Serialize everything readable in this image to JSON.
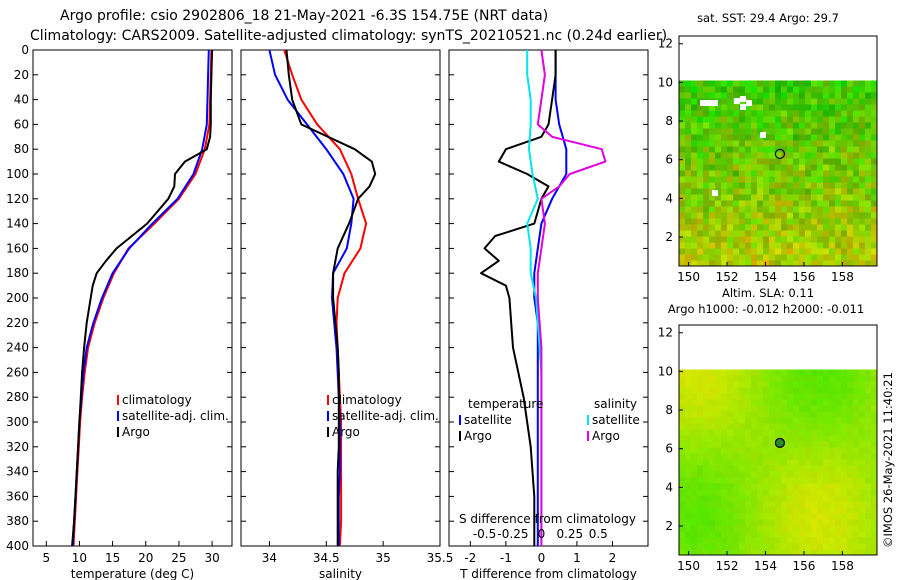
{
  "title": {
    "line1": "Argo profile: csio 2902806_18 21-May-2021 -6.3S 154.75E (NRT data)",
    "line2": "Climatology: CARS2009. Satellite-adjusted climatology: synTS_20210521.nc (0.24d earlier)"
  },
  "colors": {
    "climatology": "#ff0000",
    "satellite": "#0000ff",
    "argo": "#000000",
    "sat_salinity": "#00e5ee",
    "argo_salinity": "#e000e0"
  },
  "chart_data": [
    {
      "type": "line",
      "name": "temperature-profile",
      "xlabel": "temperature (deg C)",
      "ylabel": "depth",
      "xlim": [
        3,
        33
      ],
      "ylim": [
        400,
        0
      ],
      "xticks": [
        "5",
        "10",
        "15",
        "20",
        "25",
        "30"
      ],
      "xtick_values": [
        5,
        10,
        15,
        20,
        25,
        30
      ],
      "yticks": [
        "0",
        "20",
        "40",
        "60",
        "80",
        "100",
        "120",
        "140",
        "160",
        "180",
        "200",
        "220",
        "240",
        "260",
        "280",
        "300",
        "320",
        "340",
        "360",
        "380",
        "400"
      ],
      "legend": [
        "climatology",
        "satellite-adj. clim.",
        "Argo"
      ],
      "series": [
        {
          "name": "climatology",
          "color": "#ff0000",
          "depth": [
            0,
            20,
            40,
            60,
            80,
            100,
            120,
            140,
            160,
            180,
            200,
            220,
            240,
            260,
            280,
            300,
            320,
            340,
            360,
            380,
            400
          ],
          "values": [
            29.9,
            29.8,
            29.7,
            29.6,
            28.9,
            27.5,
            25.0,
            21.3,
            17.4,
            15.2,
            13.6,
            12.3,
            11.3,
            10.8,
            10.4,
            10.1,
            9.9,
            9.7,
            9.5,
            9.3,
            9.1
          ]
        },
        {
          "name": "satellite-adj. clim.",
          "color": "#0000ff",
          "depth": [
            0,
            20,
            40,
            60,
            80,
            100,
            120,
            140,
            160,
            180,
            200,
            220,
            240,
            260,
            280,
            300,
            320,
            340,
            360,
            380,
            400
          ],
          "values": [
            29.5,
            29.4,
            29.3,
            29.2,
            28.5,
            27.2,
            24.8,
            21.0,
            17.5,
            15.0,
            13.4,
            12.1,
            11.1,
            10.6,
            10.3,
            10.0,
            9.8,
            9.6,
            9.4,
            9.2,
            9.0
          ]
        },
        {
          "name": "Argo",
          "color": "#000000",
          "depth": [
            0,
            20,
            40,
            60,
            70,
            80,
            90,
            100,
            110,
            120,
            140,
            160,
            170,
            180,
            190,
            200,
            220,
            240,
            260,
            280,
            300,
            320,
            340,
            360,
            380,
            400
          ],
          "values": [
            30.0,
            29.9,
            29.8,
            29.8,
            29.7,
            29.2,
            25.9,
            24.4,
            24.3,
            23.4,
            20.2,
            15.6,
            14.0,
            12.6,
            12.0,
            11.7,
            11.1,
            10.7,
            10.4,
            10.2,
            10.0,
            9.8,
            9.6,
            9.4,
            9.2,
            8.9
          ]
        }
      ]
    },
    {
      "type": "line",
      "name": "salinity-profile",
      "xlabel": "salinity",
      "ylabel": "depth",
      "xlim": [
        33.75,
        35.5
      ],
      "ylim": [
        400,
        0
      ],
      "xticks": [
        "34",
        "34.5",
        "35",
        "35.5"
      ],
      "xtick_values": [
        34,
        34.5,
        35,
        35.5
      ],
      "legend": [
        "climatology",
        "satellite-adj. clim.",
        "Argo"
      ],
      "series": [
        {
          "name": "climatology",
          "color": "#ff0000",
          "depth": [
            0,
            20,
            40,
            60,
            80,
            100,
            120,
            140,
            160,
            180,
            200,
            220,
            240,
            260,
            280,
            300,
            320,
            340,
            360,
            380,
            400
          ],
          "values": [
            34.13,
            34.2,
            34.28,
            34.42,
            34.62,
            34.72,
            34.78,
            34.85,
            34.8,
            34.66,
            34.6,
            34.59,
            34.6,
            34.61,
            34.62,
            34.63,
            34.63,
            34.63,
            34.63,
            34.63,
            34.62
          ]
        },
        {
          "name": "satellite-adj. clim.",
          "color": "#0000ff",
          "depth": [
            0,
            20,
            40,
            60,
            80,
            100,
            120,
            140,
            160,
            180,
            200,
            220,
            240,
            260,
            280,
            300,
            320,
            340,
            360,
            380,
            400
          ],
          "values": [
            34.0,
            34.05,
            34.16,
            34.33,
            34.5,
            34.65,
            34.74,
            34.72,
            34.68,
            34.56,
            34.55,
            34.57,
            34.59,
            34.6,
            34.61,
            34.62,
            34.62,
            34.62,
            34.61,
            34.61,
            34.61
          ]
        },
        {
          "name": "Argo",
          "color": "#000000",
          "depth": [
            0,
            20,
            40,
            60,
            80,
            90,
            100,
            110,
            120,
            140,
            160,
            180,
            200,
            220,
            240,
            260,
            280,
            300,
            320,
            340,
            360,
            380,
            400
          ],
          "values": [
            34.15,
            34.17,
            34.2,
            34.28,
            34.75,
            34.9,
            34.93,
            34.88,
            34.78,
            34.7,
            34.6,
            34.56,
            34.56,
            34.58,
            34.6,
            34.61,
            34.61,
            34.61,
            34.61,
            34.6,
            34.6,
            34.6,
            34.6
          ]
        }
      ]
    },
    {
      "type": "line",
      "name": "difference-profile",
      "xlabel": "T difference from climatology",
      "xlabel_top": "S difference from climatology",
      "ylabel": "depth",
      "xlim": [
        -2.6,
        3.0
      ],
      "ylim": [
        400,
        0
      ],
      "xticks": [
        "-2",
        "-1",
        "0",
        "1",
        "2"
      ],
      "xtick_values": [
        -2,
        -1,
        0,
        1,
        2
      ],
      "top_ticks": [
        "-0.5",
        "-0.25",
        "0",
        "0.25",
        "0.5"
      ],
      "top_tick_values": [
        -1.6,
        -0.8,
        0,
        0.8,
        1.6
      ],
      "legend_temperature_title": "temperature",
      "legend_salinity_title": "salinity",
      "legend": [
        "satellite",
        "Argo",
        "satellite",
        "Argo"
      ],
      "series": [
        {
          "name": "T satellite",
          "color": "#0000ff",
          "depth": [
            0,
            20,
            40,
            60,
            80,
            100,
            120,
            140,
            160,
            180,
            200,
            220,
            240,
            260,
            280,
            300,
            320,
            340,
            360,
            380,
            400
          ],
          "values": [
            0.4,
            0.4,
            0.4,
            0.5,
            0.7,
            0.7,
            0.3,
            0.0,
            -0.1,
            -0.2,
            -0.2,
            -0.1,
            -0.1,
            -0.1,
            -0.1,
            -0.1,
            -0.1,
            -0.1,
            -0.1,
            -0.1,
            -0.1
          ]
        },
        {
          "name": "T Argo",
          "color": "#000000",
          "depth": [
            0,
            20,
            40,
            60,
            70,
            80,
            90,
            100,
            110,
            120,
            140,
            150,
            160,
            170,
            180,
            190,
            200,
            240,
            280,
            320,
            360,
            400
          ],
          "values": [
            0.4,
            0.4,
            0.3,
            0.2,
            0.0,
            -1.0,
            -1.2,
            -0.4,
            0.2,
            0.0,
            -0.2,
            -1.3,
            -1.6,
            -1.2,
            -1.7,
            -1.0,
            -0.9,
            -0.8,
            -0.5,
            -0.3,
            -0.2,
            -0.2
          ]
        },
        {
          "name": "S satellite",
          "color": "#00e5ee",
          "depth": [
            0,
            20,
            40,
            60,
            80,
            100,
            120,
            140,
            160,
            180,
            200,
            220,
            240,
            260,
            280,
            300,
            320,
            340,
            360,
            380,
            400
          ],
          "values": [
            -0.4,
            -0.4,
            -0.3,
            -0.3,
            -0.35,
            -0.25,
            -0.1,
            -0.4,
            -0.3,
            -0.3,
            -0.15,
            -0.1,
            -0.05,
            0.0,
            0.0,
            0.0,
            0.0,
            0.0,
            0.0,
            0.0,
            0.0
          ]
        },
        {
          "name": "S Argo",
          "color": "#e000e0",
          "depth": [
            0,
            20,
            40,
            60,
            70,
            80,
            90,
            100,
            110,
            120,
            140,
            160,
            180,
            200,
            240,
            280,
            320,
            360,
            400
          ],
          "values": [
            0.0,
            0.1,
            0.0,
            -0.1,
            0.3,
            1.7,
            1.8,
            0.8,
            0.5,
            0.0,
            0.1,
            0.0,
            -0.1,
            -0.1,
            0.0,
            0.0,
            0.0,
            0.0,
            0.0
          ]
        }
      ]
    },
    {
      "type": "heatmap",
      "name": "sst-map",
      "title": "sat. SST: 29.4 Argo: 29.7",
      "xticks": [
        "150",
        "152",
        "154",
        "156",
        "158"
      ],
      "xtick_values": [
        150,
        152,
        154,
        156,
        158
      ],
      "yticks": [
        "2",
        "4",
        "6",
        "8",
        "10",
        "12"
      ],
      "ytick_values": [
        2,
        4,
        6,
        8,
        10,
        12
      ],
      "xlim": [
        149.5,
        159.8
      ],
      "ylim": [
        0.5,
        12.4
      ],
      "data_top": 10.1,
      "marker": {
        "x": 154.75,
        "y": 6.3
      }
    },
    {
      "type": "heatmap",
      "name": "sla-map",
      "title": "Altim. SLA: 0.11",
      "subtitle": "Argo h1000: -0.012 h2000: -0.011",
      "xticks": [
        "150",
        "152",
        "154",
        "156",
        "158"
      ],
      "xtick_values": [
        150,
        152,
        154,
        156,
        158
      ],
      "yticks": [
        "2",
        "4",
        "6",
        "8",
        "10",
        "12"
      ],
      "ytick_values": [
        2,
        4,
        6,
        8,
        10,
        12
      ],
      "xlim": [
        149.5,
        159.8
      ],
      "ylim": [
        0.5,
        12.4
      ],
      "data_top": 10.1,
      "marker": {
        "x": 154.75,
        "y": 6.3
      }
    }
  ],
  "watermark": "©IMOS 26-May-2021 11:40:21"
}
